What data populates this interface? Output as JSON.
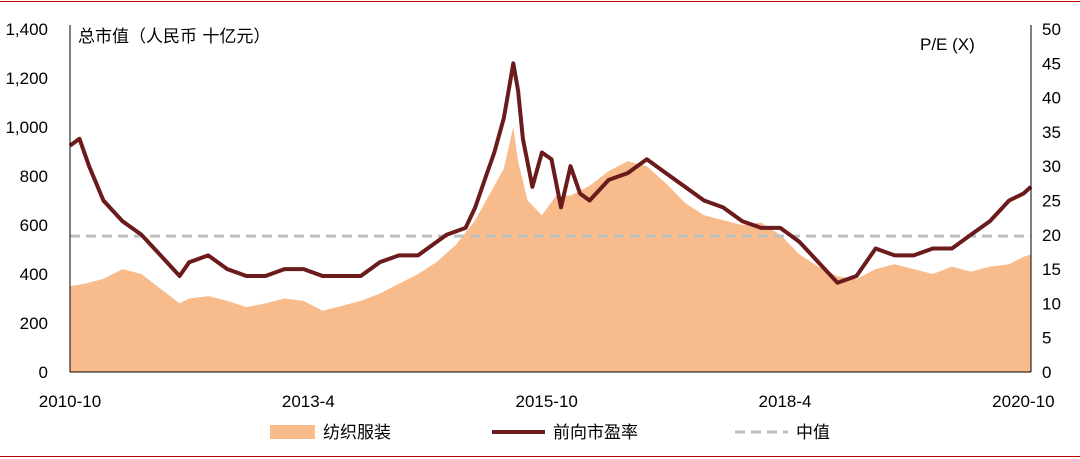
{
  "chart_data": {
    "type": "area",
    "left_axis_label": "总市值（人民币 十亿元）",
    "right_axis_label": "P/E (X)",
    "left_ylim": [
      0,
      1400
    ],
    "right_ylim": [
      0,
      50
    ],
    "left_ticks": [
      "0",
      "200",
      "400",
      "600",
      "800",
      "1,000",
      "1,200",
      "1,400"
    ],
    "right_ticks": [
      "0",
      "5",
      "10",
      "15",
      "20",
      "25",
      "30",
      "35",
      "40",
      "45",
      "50"
    ],
    "x_range": [
      2010.75,
      2020.83
    ],
    "x_ticks": [
      {
        "label": "2010-10",
        "x": 2010.75
      },
      {
        "label": "2013-4",
        "x": 2013.25
      },
      {
        "label": "2015-10",
        "x": 2015.75
      },
      {
        "label": "2018-4",
        "x": 2018.25
      },
      {
        "label": "2020-10",
        "x": 2020.75
      }
    ],
    "legend": [
      "纺织服装",
      "前向市盈率",
      "中值"
    ],
    "colors": {
      "area": "#f8bc8c",
      "line": "#6b1b1b",
      "median": "#bfbfbf"
    },
    "series": [
      {
        "name": "纺织服装",
        "axis": "left",
        "type": "area",
        "x": [
          2010.75,
          2010.9,
          2011.1,
          2011.3,
          2011.5,
          2011.7,
          2011.9,
          2012.0,
          2012.2,
          2012.4,
          2012.6,
          2012.8,
          2013.0,
          2013.2,
          2013.4,
          2013.6,
          2013.8,
          2014.0,
          2014.2,
          2014.4,
          2014.6,
          2014.8,
          2015.0,
          2015.2,
          2015.3,
          2015.4,
          2015.45,
          2015.55,
          2015.7,
          2015.85,
          2016.0,
          2016.2,
          2016.4,
          2016.6,
          2016.8,
          2017.0,
          2017.2,
          2017.4,
          2017.6,
          2017.8,
          2018.0,
          2018.2,
          2018.4,
          2018.6,
          2018.8,
          2019.0,
          2019.2,
          2019.4,
          2019.6,
          2019.8,
          2020.0,
          2020.2,
          2020.4,
          2020.6,
          2020.75,
          2020.83
        ],
        "values": [
          350,
          360,
          380,
          420,
          400,
          340,
          280,
          300,
          310,
          290,
          265,
          280,
          300,
          290,
          250,
          270,
          290,
          320,
          360,
          400,
          450,
          520,
          620,
          760,
          830,
          1000,
          860,
          700,
          640,
          720,
          720,
          760,
          820,
          860,
          840,
          770,
          690,
          640,
          620,
          600,
          610,
          560,
          480,
          430,
          390,
          380,
          420,
          440,
          420,
          400,
          430,
          410,
          430,
          440,
          470,
          480
        ]
      },
      {
        "name": "前向市盈率",
        "axis": "right",
        "type": "line",
        "x": [
          2010.75,
          2010.85,
          2010.95,
          2011.1,
          2011.3,
          2011.5,
          2011.7,
          2011.9,
          2012.0,
          2012.2,
          2012.4,
          2012.6,
          2012.8,
          2013.0,
          2013.2,
          2013.4,
          2013.6,
          2013.8,
          2014.0,
          2014.2,
          2014.4,
          2014.5,
          2014.7,
          2014.9,
          2015.0,
          2015.1,
          2015.2,
          2015.3,
          2015.35,
          2015.4,
          2015.45,
          2015.5,
          2015.6,
          2015.7,
          2015.8,
          2015.9,
          2016.0,
          2016.1,
          2016.2,
          2016.4,
          2016.6,
          2016.8,
          2017.0,
          2017.2,
          2017.4,
          2017.6,
          2017.8,
          2018.0,
          2018.2,
          2018.4,
          2018.6,
          2018.8,
          2019.0,
          2019.2,
          2019.4,
          2019.6,
          2019.8,
          2020.0,
          2020.2,
          2020.4,
          2020.6,
          2020.75,
          2020.83
        ],
        "values": [
          33,
          34,
          30,
          25,
          22,
          20,
          17,
          14,
          16,
          17,
          15,
          14,
          14,
          15,
          15,
          14,
          14,
          14,
          16,
          17,
          17,
          18,
          20,
          21,
          24,
          28,
          32,
          37,
          41,
          45,
          41,
          34,
          27,
          32,
          31,
          24,
          30,
          26,
          25,
          28,
          29,
          31,
          29,
          27,
          25,
          24,
          22,
          21,
          21,
          19,
          16,
          13,
          14,
          18,
          17,
          17,
          18,
          18,
          20,
          22,
          25,
          26,
          27
        ]
      },
      {
        "name": "中值",
        "axis": "right",
        "type": "hline",
        "value": 19.8
      }
    ]
  }
}
